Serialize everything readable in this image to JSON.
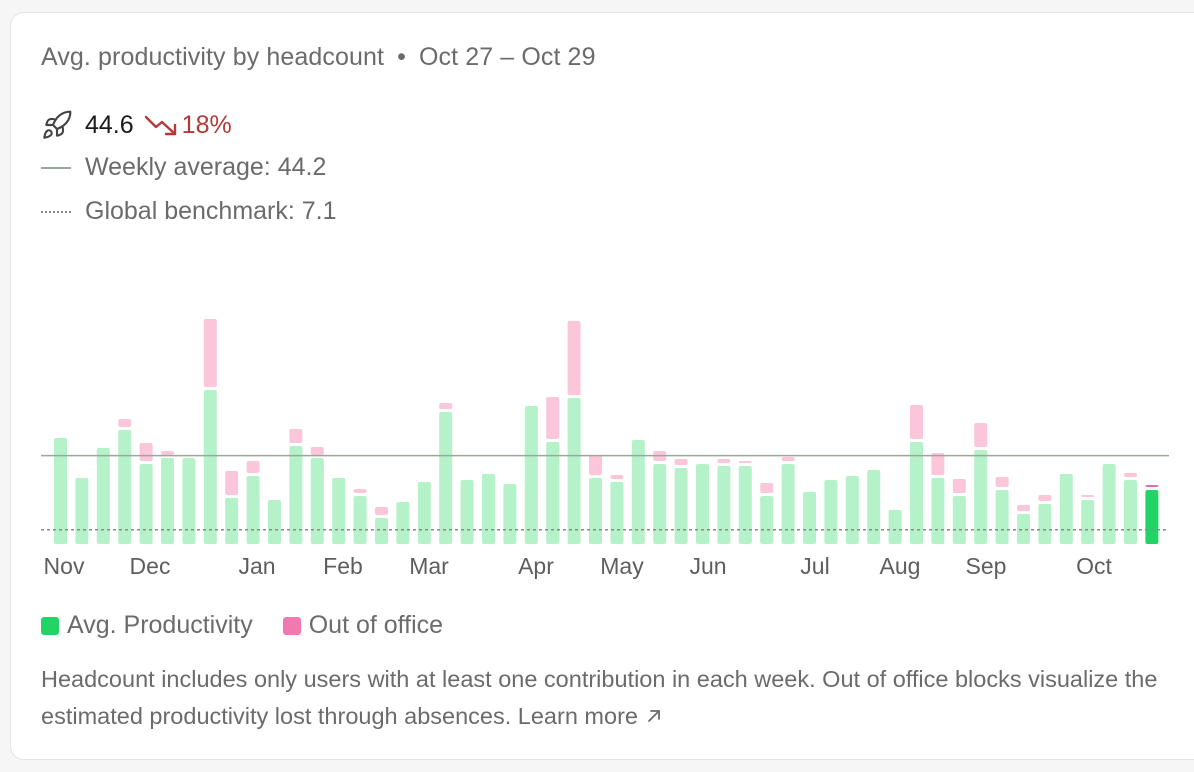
{
  "header": {
    "title": "Avg. productivity by headcount",
    "date_range": "Oct 27 – Oct 29"
  },
  "kpi": {
    "icon": "rocket-icon",
    "value": "44.6",
    "trend_icon": "trending-down-icon",
    "change": "18%",
    "change_color": "#b23a3a"
  },
  "reference_lines": {
    "weekly": "Weekly average: 44.2",
    "global": "Global benchmark: 7.1"
  },
  "legend": {
    "productivity": "Avg. Productivity",
    "ooo": "Out of office"
  },
  "footnote": {
    "text": "Headcount includes only users with at least one contribution in each week. Out of office blocks visualize the estimated productivity lost through absences.",
    "link": "Learn more",
    "link_icon": "arrow-up-right-icon"
  },
  "colors": {
    "productivity": "#b6f2c9",
    "productivity_current": "#22d466",
    "ooo": "#fcc6da",
    "ooo_legend": "#f07ab0",
    "productivity_legend": "#22d466",
    "weekly_line": "#9aa79a",
    "global_line": "#8a8a8a"
  },
  "chart_data": {
    "type": "bar",
    "stacked": true,
    "x_labels": [
      "Nov",
      "Dec",
      "Jan",
      "Feb",
      "Mar",
      "Apr",
      "May",
      "Jun",
      "Jul",
      "Aug",
      "Sep",
      "Oct"
    ],
    "reference_lines": {
      "weekly_average": 44.2,
      "global_benchmark": 7.1
    },
    "ylim": [
      0,
      120
    ],
    "series": [
      {
        "name": "Avg. Productivity",
        "values": [
          53.0,
          33.0,
          48.0,
          57.0,
          40.0,
          43.0,
          43.0,
          77.0,
          23.0,
          34.0,
          22.0,
          49.0,
          43.0,
          33.0,
          24.0,
          13.0,
          21.0,
          31.0,
          66.0,
          32.0,
          35.0,
          30.0,
          69.0,
          51.0,
          73.0,
          33.0,
          31.0,
          52.0,
          40.0,
          38.0,
          40.0,
          39.0,
          39.0,
          24.0,
          40.0,
          26.0,
          32.0,
          34.0,
          37.0,
          17.0,
          51.0,
          33.0,
          24.0,
          47.0,
          27.0,
          15.0,
          20.0,
          35.0,
          22.0,
          40.0,
          32.0,
          27.0
        ]
      },
      {
        "name": "Out of office",
        "values": [
          0.0,
          0.0,
          0.0,
          4.0,
          9.0,
          2.0,
          0.0,
          34.0,
          12.0,
          6.0,
          0.0,
          7.0,
          4.0,
          0.0,
          2.0,
          4.0,
          0.0,
          0.0,
          3.0,
          0.0,
          0.0,
          0.0,
          0.0,
          21.0,
          37.0,
          10.0,
          2.0,
          0.0,
          5.0,
          3.0,
          0.0,
          2.0,
          1.0,
          5.0,
          2.0,
          0.0,
          0.0,
          0.0,
          0.0,
          0.0,
          17.0,
          11.0,
          7.0,
          12.0,
          5.0,
          3.0,
          3.0,
          0.0,
          1.0,
          0.0,
          2.0,
          1.0
        ]
      }
    ]
  }
}
